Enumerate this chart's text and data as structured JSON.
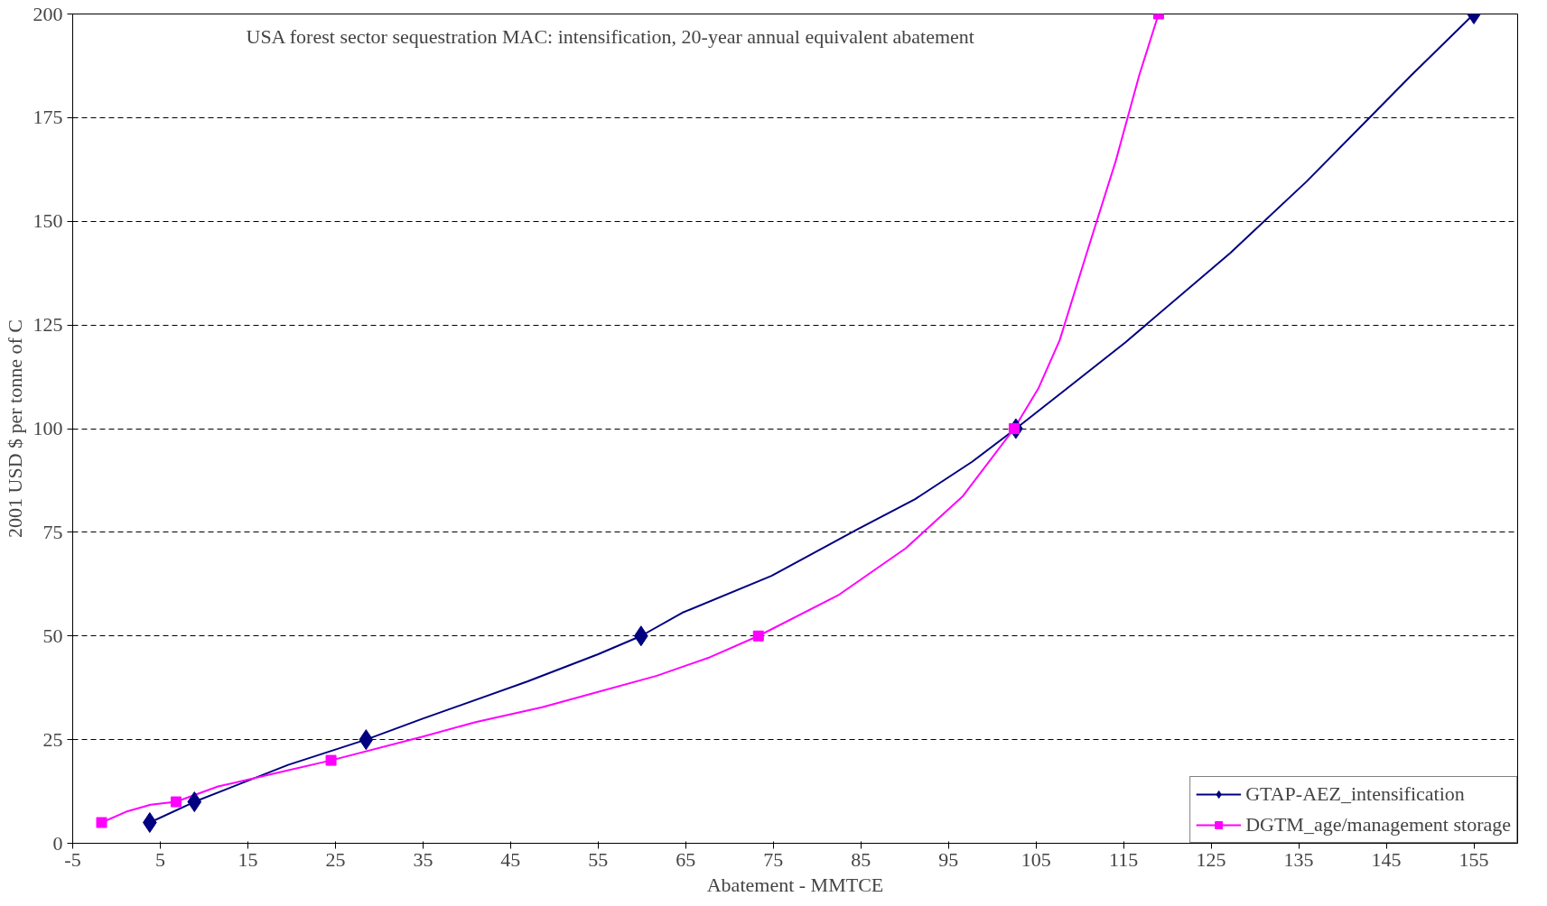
{
  "chart_data": {
    "type": "line",
    "title": "USA forest sector sequestration MAC: intensification, 20-year annual equivalent abatement",
    "xlabel": "Abatement - MMTCE",
    "ylabel": "2001 USD $ per tonne of C",
    "xlim": [
      -5,
      160
    ],
    "xticks": [
      -5,
      5,
      15,
      25,
      35,
      45,
      55,
      65,
      75,
      85,
      95,
      105,
      115,
      125,
      135,
      145,
      155
    ],
    "ylim": [
      0,
      200
    ],
    "yticks": [
      0,
      25,
      50,
      75,
      100,
      125,
      150,
      175,
      200
    ],
    "grid": "y",
    "legend": "bottom right",
    "line_style": "solid",
    "series": [
      {
        "color": "#000080",
        "marker": "none",
        "x": [
          3.8,
          8.9,
          19.6,
          28.5,
          34.9,
          46.9,
          55,
          59.9,
          64.6,
          74.8,
          84.6,
          91.2,
          97.7,
          102.7,
          108.6,
          115.2,
          127.2,
          135.9,
          147.9,
          155
        ],
        "values": [
          5,
          10,
          18.9,
          25,
          30,
          39,
          45.6,
          50,
          55.6,
          64.5,
          75.7,
          83,
          92,
          100,
          109.8,
          120.8,
          142.4,
          159.6,
          185.3,
          200
        ]
      },
      {
        "color": "#ff00ff",
        "marker": "none",
        "x": [
          -1.7,
          1.1,
          3.9,
          6.8,
          11.6,
          19.2,
          24.5,
          34.9,
          41,
          48.6,
          61.7,
          67.8,
          73.3,
          82.4,
          90.1,
          96.6,
          102.5,
          105.3,
          107.7,
          110.8,
          114.1,
          116.8,
          119
        ],
        "values": [
          5,
          7.6,
          9.3,
          10,
          13.7,
          17.4,
          20,
          25.7,
          29.2,
          32.8,
          40.4,
          44.9,
          50,
          59.8,
          71.1,
          83.6,
          100,
          109.8,
          121.3,
          142.4,
          164.5,
          185.3,
          200
        ]
      },
      {
        "type": "scatter",
        "name": "GTAP-AEZ_intensification",
        "color": "#000080",
        "marker": "diamond",
        "x": [
          3.8,
          8.9,
          28.5,
          59.9,
          102.7,
          155
        ],
        "values": [
          5,
          10,
          25,
          50,
          100,
          200
        ]
      },
      {
        "type": "scatter",
        "name": "DGTM_age/management storage",
        "color": "#ff00ff",
        "marker": "square",
        "x": [
          -1.7,
          6.8,
          24.5,
          73.3,
          102.5,
          119
        ],
        "values": [
          5,
          10,
          20,
          50,
          100,
          200
        ]
      }
    ]
  }
}
